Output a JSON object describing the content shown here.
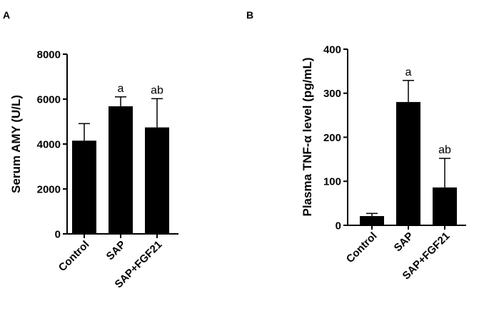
{
  "panels": {
    "A": {
      "label": "A"
    },
    "B": {
      "label": "B"
    }
  },
  "chart_data": [
    {
      "type": "bar",
      "panel": "A",
      "title": "",
      "xlabel": "",
      "ylabel": "Serum AMY (U/L)",
      "ylim": [
        0,
        8000
      ],
      "yticks": [
        0,
        2000,
        4000,
        6000,
        8000
      ],
      "ytick_labels": [
        "0",
        "2000",
        "4000",
        "6000",
        "8000"
      ],
      "categories": [
        "Control",
        "SAP",
        "SAP+FGF21"
      ],
      "values": [
        4150,
        5680,
        4740
      ],
      "errors": [
        760,
        420,
        1280
      ],
      "annotations": [
        "",
        "a",
        "ab"
      ],
      "bar_color": "#000000"
    },
    {
      "type": "bar",
      "panel": "B",
      "title": "",
      "xlabel": "",
      "ylabel": "Plasma TNF-α level (pg/mL)",
      "ylim": [
        0,
        400
      ],
      "yticks": [
        0,
        100,
        200,
        300,
        400
      ],
      "ytick_labels": [
        "0",
        "100",
        "200",
        "300",
        "400"
      ],
      "categories": [
        "Control",
        "SAP",
        "SAP+FGF21"
      ],
      "values": [
        21,
        280,
        86
      ],
      "errors": [
        6,
        49,
        66
      ],
      "annotations": [
        "",
        "a",
        "ab"
      ],
      "bar_color": "#000000"
    }
  ]
}
